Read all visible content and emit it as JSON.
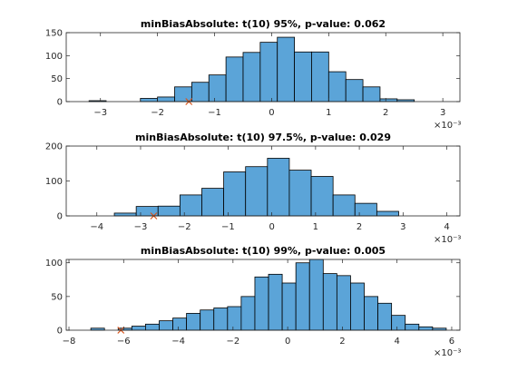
{
  "chart_data": [
    {
      "type": "bar",
      "title": "minBiasAbsolute: t(10) 95%, p-value: 0.062",
      "exponent_label": "×10⁻³",
      "xlim": [
        -3.6,
        3.3
      ],
      "ylim": [
        0,
        150
      ],
      "xticks": [
        -3,
        -2,
        -1,
        0,
        1,
        2,
        3
      ],
      "yticks": [
        0,
        50,
        100,
        150
      ],
      "bins": [
        {
          "x0": -3.2,
          "x1": -2.9,
          "value": 2
        },
        {
          "x0": -2.9,
          "x1": -2.6,
          "value": 0
        },
        {
          "x0": -2.6,
          "x1": -2.3,
          "value": 0
        },
        {
          "x0": -2.3,
          "x1": -2.0,
          "value": 7
        },
        {
          "x0": -2.0,
          "x1": -1.7,
          "value": 10
        },
        {
          "x0": -1.7,
          "x1": -1.4,
          "value": 32
        },
        {
          "x0": -1.4,
          "x1": -1.1,
          "value": 42
        },
        {
          "x0": -1.1,
          "x1": -0.8,
          "value": 58
        },
        {
          "x0": -0.8,
          "x1": -0.5,
          "value": 97
        },
        {
          "x0": -0.5,
          "x1": -0.2,
          "value": 107
        },
        {
          "x0": -0.2,
          "x1": 0.1,
          "value": 129
        },
        {
          "x0": 0.1,
          "x1": 0.4,
          "value": 140
        },
        {
          "x0": 0.4,
          "x1": 0.7,
          "value": 108
        },
        {
          "x0": 0.7,
          "x1": 1.0,
          "value": 108
        },
        {
          "x0": 1.0,
          "x1": 1.3,
          "value": 65
        },
        {
          "x0": 1.3,
          "x1": 1.6,
          "value": 48
        },
        {
          "x0": 1.6,
          "x1": 1.9,
          "value": 32
        },
        {
          "x0": 1.9,
          "x1": 2.2,
          "value": 6
        },
        {
          "x0": 2.2,
          "x1": 2.5,
          "value": 4
        }
      ],
      "marker": {
        "x": -1.45,
        "y": 0
      }
    },
    {
      "type": "bar",
      "title": "minBiasAbsolute: t(10) 97.5%, p-value: 0.029",
      "exponent_label": "×10⁻³",
      "xlim": [
        -4.7,
        4.3
      ],
      "ylim": [
        0,
        200
      ],
      "xticks": [
        -4,
        -3,
        -2,
        -1,
        0,
        1,
        2,
        3,
        4
      ],
      "yticks": [
        0,
        100,
        200
      ],
      "bins": [
        {
          "x0": -3.6,
          "x1": -3.1,
          "value": 8
        },
        {
          "x0": -3.1,
          "x1": -2.6,
          "value": 27
        },
        {
          "x0": -2.6,
          "x1": -2.1,
          "value": 28
        },
        {
          "x0": -2.1,
          "x1": -1.6,
          "value": 60
        },
        {
          "x0": -1.6,
          "x1": -1.1,
          "value": 79
        },
        {
          "x0": -1.1,
          "x1": -0.6,
          "value": 126
        },
        {
          "x0": -0.6,
          "x1": -0.1,
          "value": 141
        },
        {
          "x0": -0.1,
          "x1": 0.4,
          "value": 165
        },
        {
          "x0": 0.4,
          "x1": 0.9,
          "value": 131
        },
        {
          "x0": 0.9,
          "x1": 1.4,
          "value": 113
        },
        {
          "x0": 1.4,
          "x1": 1.9,
          "value": 60
        },
        {
          "x0": 1.9,
          "x1": 2.4,
          "value": 36
        },
        {
          "x0": 2.4,
          "x1": 2.9,
          "value": 13
        }
      ],
      "marker": {
        "x": -2.7,
        "y": 0
      }
    },
    {
      "type": "bar",
      "title": "minBiasAbsolute: t(10) 99%, p-value: 0.005",
      "exponent_label": "×10⁻³",
      "xlim": [
        -8.1,
        6.3
      ],
      "ylim": [
        0,
        105
      ],
      "xticks": [
        -8,
        -6,
        -4,
        -2,
        0,
        2,
        4,
        6
      ],
      "yticks": [
        0,
        50,
        100
      ],
      "bins": [
        {
          "x0": -7.2,
          "x1": -6.7,
          "value": 3
        },
        {
          "x0": -6.7,
          "x1": -6.2,
          "value": 0
        },
        {
          "x0": -6.2,
          "x1": -5.7,
          "value": 3
        },
        {
          "x0": -5.7,
          "x1": -5.2,
          "value": 6
        },
        {
          "x0": -5.2,
          "x1": -4.7,
          "value": 9
        },
        {
          "x0": -4.7,
          "x1": -4.2,
          "value": 14
        },
        {
          "x0": -4.2,
          "x1": -3.7,
          "value": 18
        },
        {
          "x0": -3.7,
          "x1": -3.2,
          "value": 25
        },
        {
          "x0": -3.2,
          "x1": -2.7,
          "value": 30
        },
        {
          "x0": -2.7,
          "x1": -2.2,
          "value": 33
        },
        {
          "x0": -2.2,
          "x1": -1.7,
          "value": 35
        },
        {
          "x0": -1.7,
          "x1": -1.2,
          "value": 50
        },
        {
          "x0": -1.2,
          "x1": -0.7,
          "value": 79
        },
        {
          "x0": -0.7,
          "x1": -0.2,
          "value": 83
        },
        {
          "x0": -0.2,
          "x1": 0.3,
          "value": 70
        },
        {
          "x0": 0.3,
          "x1": 0.8,
          "value": 100
        },
        {
          "x0": 0.8,
          "x1": 1.3,
          "value": 105
        },
        {
          "x0": 1.3,
          "x1": 1.8,
          "value": 84
        },
        {
          "x0": 1.8,
          "x1": 2.3,
          "value": 81
        },
        {
          "x0": 2.3,
          "x1": 2.8,
          "value": 70
        },
        {
          "x0": 2.8,
          "x1": 3.3,
          "value": 50
        },
        {
          "x0": 3.3,
          "x1": 3.8,
          "value": 40
        },
        {
          "x0": 3.8,
          "x1": 4.3,
          "value": 22
        },
        {
          "x0": 4.3,
          "x1": 4.8,
          "value": 9
        },
        {
          "x0": 4.8,
          "x1": 5.3,
          "value": 5
        },
        {
          "x0": 5.3,
          "x1": 5.8,
          "value": 3
        }
      ],
      "marker": {
        "x": -6.1,
        "y": 0
      }
    }
  ]
}
